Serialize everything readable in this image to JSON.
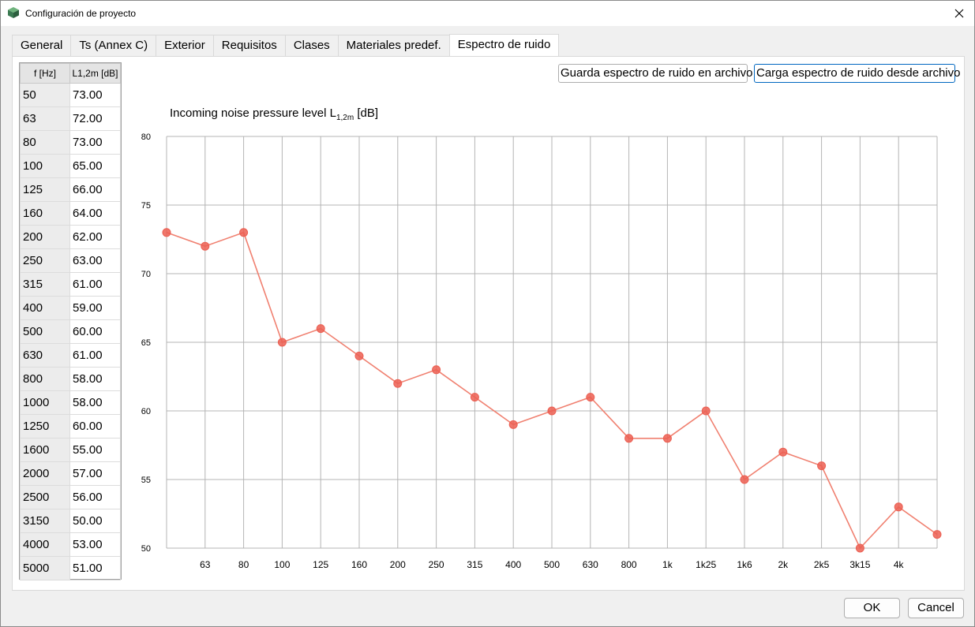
{
  "window": {
    "title": "Configuración de proyecto"
  },
  "tabs": [
    {
      "label": "General"
    },
    {
      "label": "Ts (Annex C)"
    },
    {
      "label": "Exterior"
    },
    {
      "label": "Requisitos"
    },
    {
      "label": "Clases"
    },
    {
      "label": "Materiales predef."
    },
    {
      "label": "Espectro de ruido"
    }
  ],
  "active_tab": "Espectro de ruido",
  "table": {
    "headers": [
      "f [Hz]",
      "L1,2m [dB]"
    ],
    "rows": [
      [
        "50",
        "73.00"
      ],
      [
        "63",
        "72.00"
      ],
      [
        "80",
        "73.00"
      ],
      [
        "100",
        "65.00"
      ],
      [
        "125",
        "66.00"
      ],
      [
        "160",
        "64.00"
      ],
      [
        "200",
        "62.00"
      ],
      [
        "250",
        "63.00"
      ],
      [
        "315",
        "61.00"
      ],
      [
        "400",
        "59.00"
      ],
      [
        "500",
        "60.00"
      ],
      [
        "630",
        "61.00"
      ],
      [
        "800",
        "58.00"
      ],
      [
        "1000",
        "58.00"
      ],
      [
        "1250",
        "60.00"
      ],
      [
        "1600",
        "55.00"
      ],
      [
        "2000",
        "57.00"
      ],
      [
        "2500",
        "56.00"
      ],
      [
        "3150",
        "50.00"
      ],
      [
        "4000",
        "53.00"
      ],
      [
        "5000",
        "51.00"
      ]
    ]
  },
  "buttons": {
    "save_spectrum": "Guarda espectro de ruido en archivo",
    "load_spectrum": "Carga espectro de ruido desde archivo",
    "ok": "OK",
    "cancel": "Cancel"
  },
  "chart_data": {
    "type": "line",
    "title": "Incoming noise pressure level L",
    "title_sub": "1,2m",
    "title_suffix": " [dB]",
    "categories": [
      "50",
      "63",
      "80",
      "100",
      "125",
      "160",
      "200",
      "250",
      "315",
      "400",
      "500",
      "630",
      "800",
      "1k",
      "1k25",
      "1k6",
      "2k",
      "2k5",
      "3k15",
      "4k",
      "5k"
    ],
    "x_tick_labels": [
      "",
      "63",
      "80",
      "100",
      "125",
      "160",
      "200",
      "250",
      "315",
      "400",
      "500",
      "630",
      "800",
      "1k",
      "1k25",
      "1k6",
      "2k",
      "2k5",
      "3k15",
      "4k",
      ""
    ],
    "series": [
      {
        "values": [
          73,
          72,
          73,
          65,
          66,
          64,
          62,
          63,
          61,
          59,
          60,
          61,
          58,
          58,
          60,
          55,
          57,
          56,
          50,
          53,
          51
        ]
      }
    ],
    "ylim": [
      50,
      80
    ],
    "y_ticks": [
      50,
      55,
      60,
      65,
      70,
      75,
      80
    ],
    "grid": true,
    "colors": {
      "line": "#f08070",
      "marker": "#ec5f52",
      "grid": "#b4b4b4"
    }
  }
}
